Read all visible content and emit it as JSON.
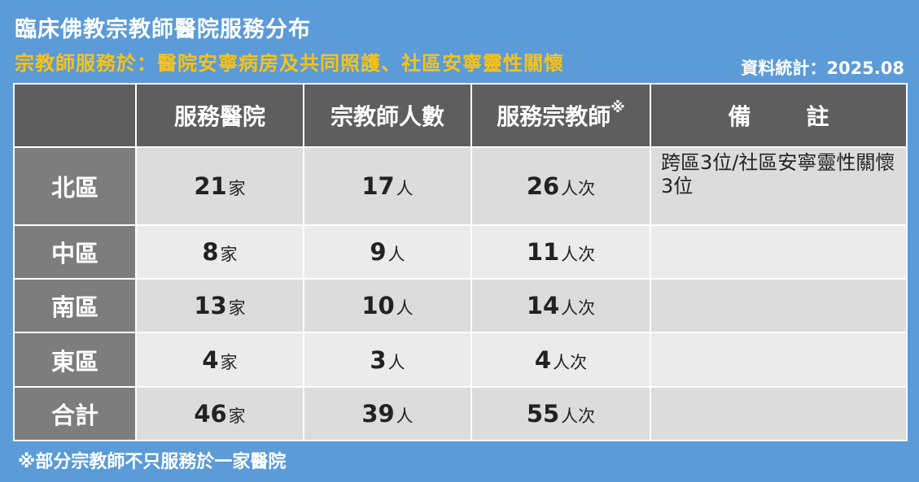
{
  "header": {
    "title": "臨床佛教宗教師醫院服務分布",
    "subtitle": "宗教師服務於：醫院安寧病房及共同照護、社區安寧靈性關懷",
    "stat_date": "資料統計：2025.08"
  },
  "table": {
    "columns": [
      "服務醫院",
      "宗教師人數",
      "服務宗教師",
      "備　註"
    ],
    "column_mark": "※",
    "rows": [
      {
        "region": "北區",
        "hospitals": "21",
        "chaplains": "17",
        "services": "26",
        "remark": "跨區3位/社區安寧靈性關懷3位"
      },
      {
        "region": "中區",
        "hospitals": "8",
        "chaplains": "9",
        "services": "11",
        "remark": ""
      },
      {
        "region": "南區",
        "hospitals": "13",
        "chaplains": "10",
        "services": "14",
        "remark": ""
      },
      {
        "region": "東區",
        "hospitals": "4",
        "chaplains": "3",
        "services": "4",
        "remark": ""
      },
      {
        "region": "合計",
        "hospitals": "46",
        "chaplains": "39",
        "services": "55",
        "remark": ""
      }
    ],
    "units": {
      "hospital": "家",
      "person": "人",
      "person_times": "人次"
    }
  },
  "footnote": "※部分宗教師不只服務於一家醫院",
  "colors": {
    "background": "#5b9bd8",
    "subtitle": "#f7c219",
    "header_cell": "#5e5e5e",
    "region_cell": "#7d7d7d",
    "row_gray": "#dcdcdc",
    "row_light": "#ebebeb"
  }
}
